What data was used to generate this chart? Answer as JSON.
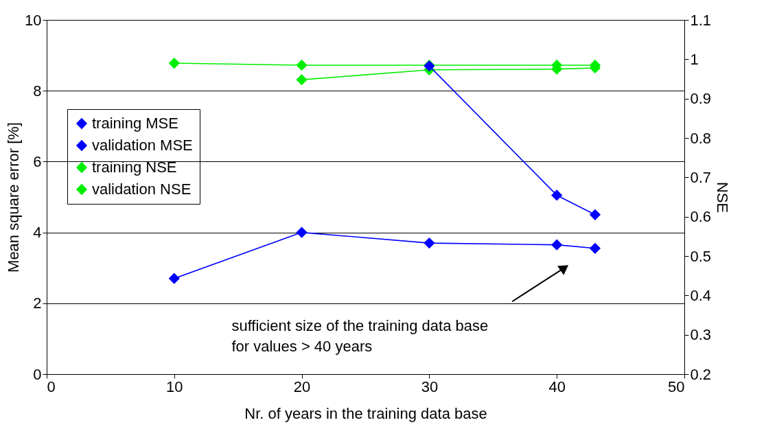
{
  "chart_data": {
    "type": "line",
    "xlabel": "Nr. of years in the training data base",
    "ylabel": "Mean square error [%]",
    "y2label": "NSE",
    "x": [
      10,
      20,
      30,
      40,
      43
    ],
    "series": [
      {
        "name": "training MSE",
        "color": "#0000ff",
        "values": [
          2.7,
          4.0,
          3.7,
          3.65,
          3.55
        ]
      },
      {
        "name": "validation MSE",
        "color": "#0000ff",
        "values": [
          null,
          null,
          8.7,
          5.05,
          4.5
        ]
      },
      {
        "name": "training NSE",
        "color": "#00ee00",
        "values": [
          0.99,
          0.985,
          0.985,
          0.985,
          0.985
        ],
        "axis": "y2"
      },
      {
        "name": "validation NSE",
        "color": "#00ee00",
        "values": [
          null,
          0.948,
          0.973,
          0.975,
          0.978
        ],
        "axis": "y2"
      }
    ],
    "marker": "diamond",
    "xlim": [
      0,
      50
    ],
    "xticks": [
      0,
      10,
      20,
      30,
      40,
      50
    ],
    "ylim": [
      0,
      10
    ],
    "yticks": [
      0,
      2,
      4,
      6,
      8,
      10
    ],
    "y2lim": [
      0.2,
      1.1
    ],
    "y2ticks": [
      0.2,
      0.3,
      0.4,
      0.5,
      0.6,
      0.7,
      0.8,
      0.9,
      1,
      1.1
    ],
    "grid": "y",
    "legend": "top left",
    "line_style": "solid",
    "annotations": [
      "sufficient size of the training data base\nfor values > 40 years"
    ]
  }
}
